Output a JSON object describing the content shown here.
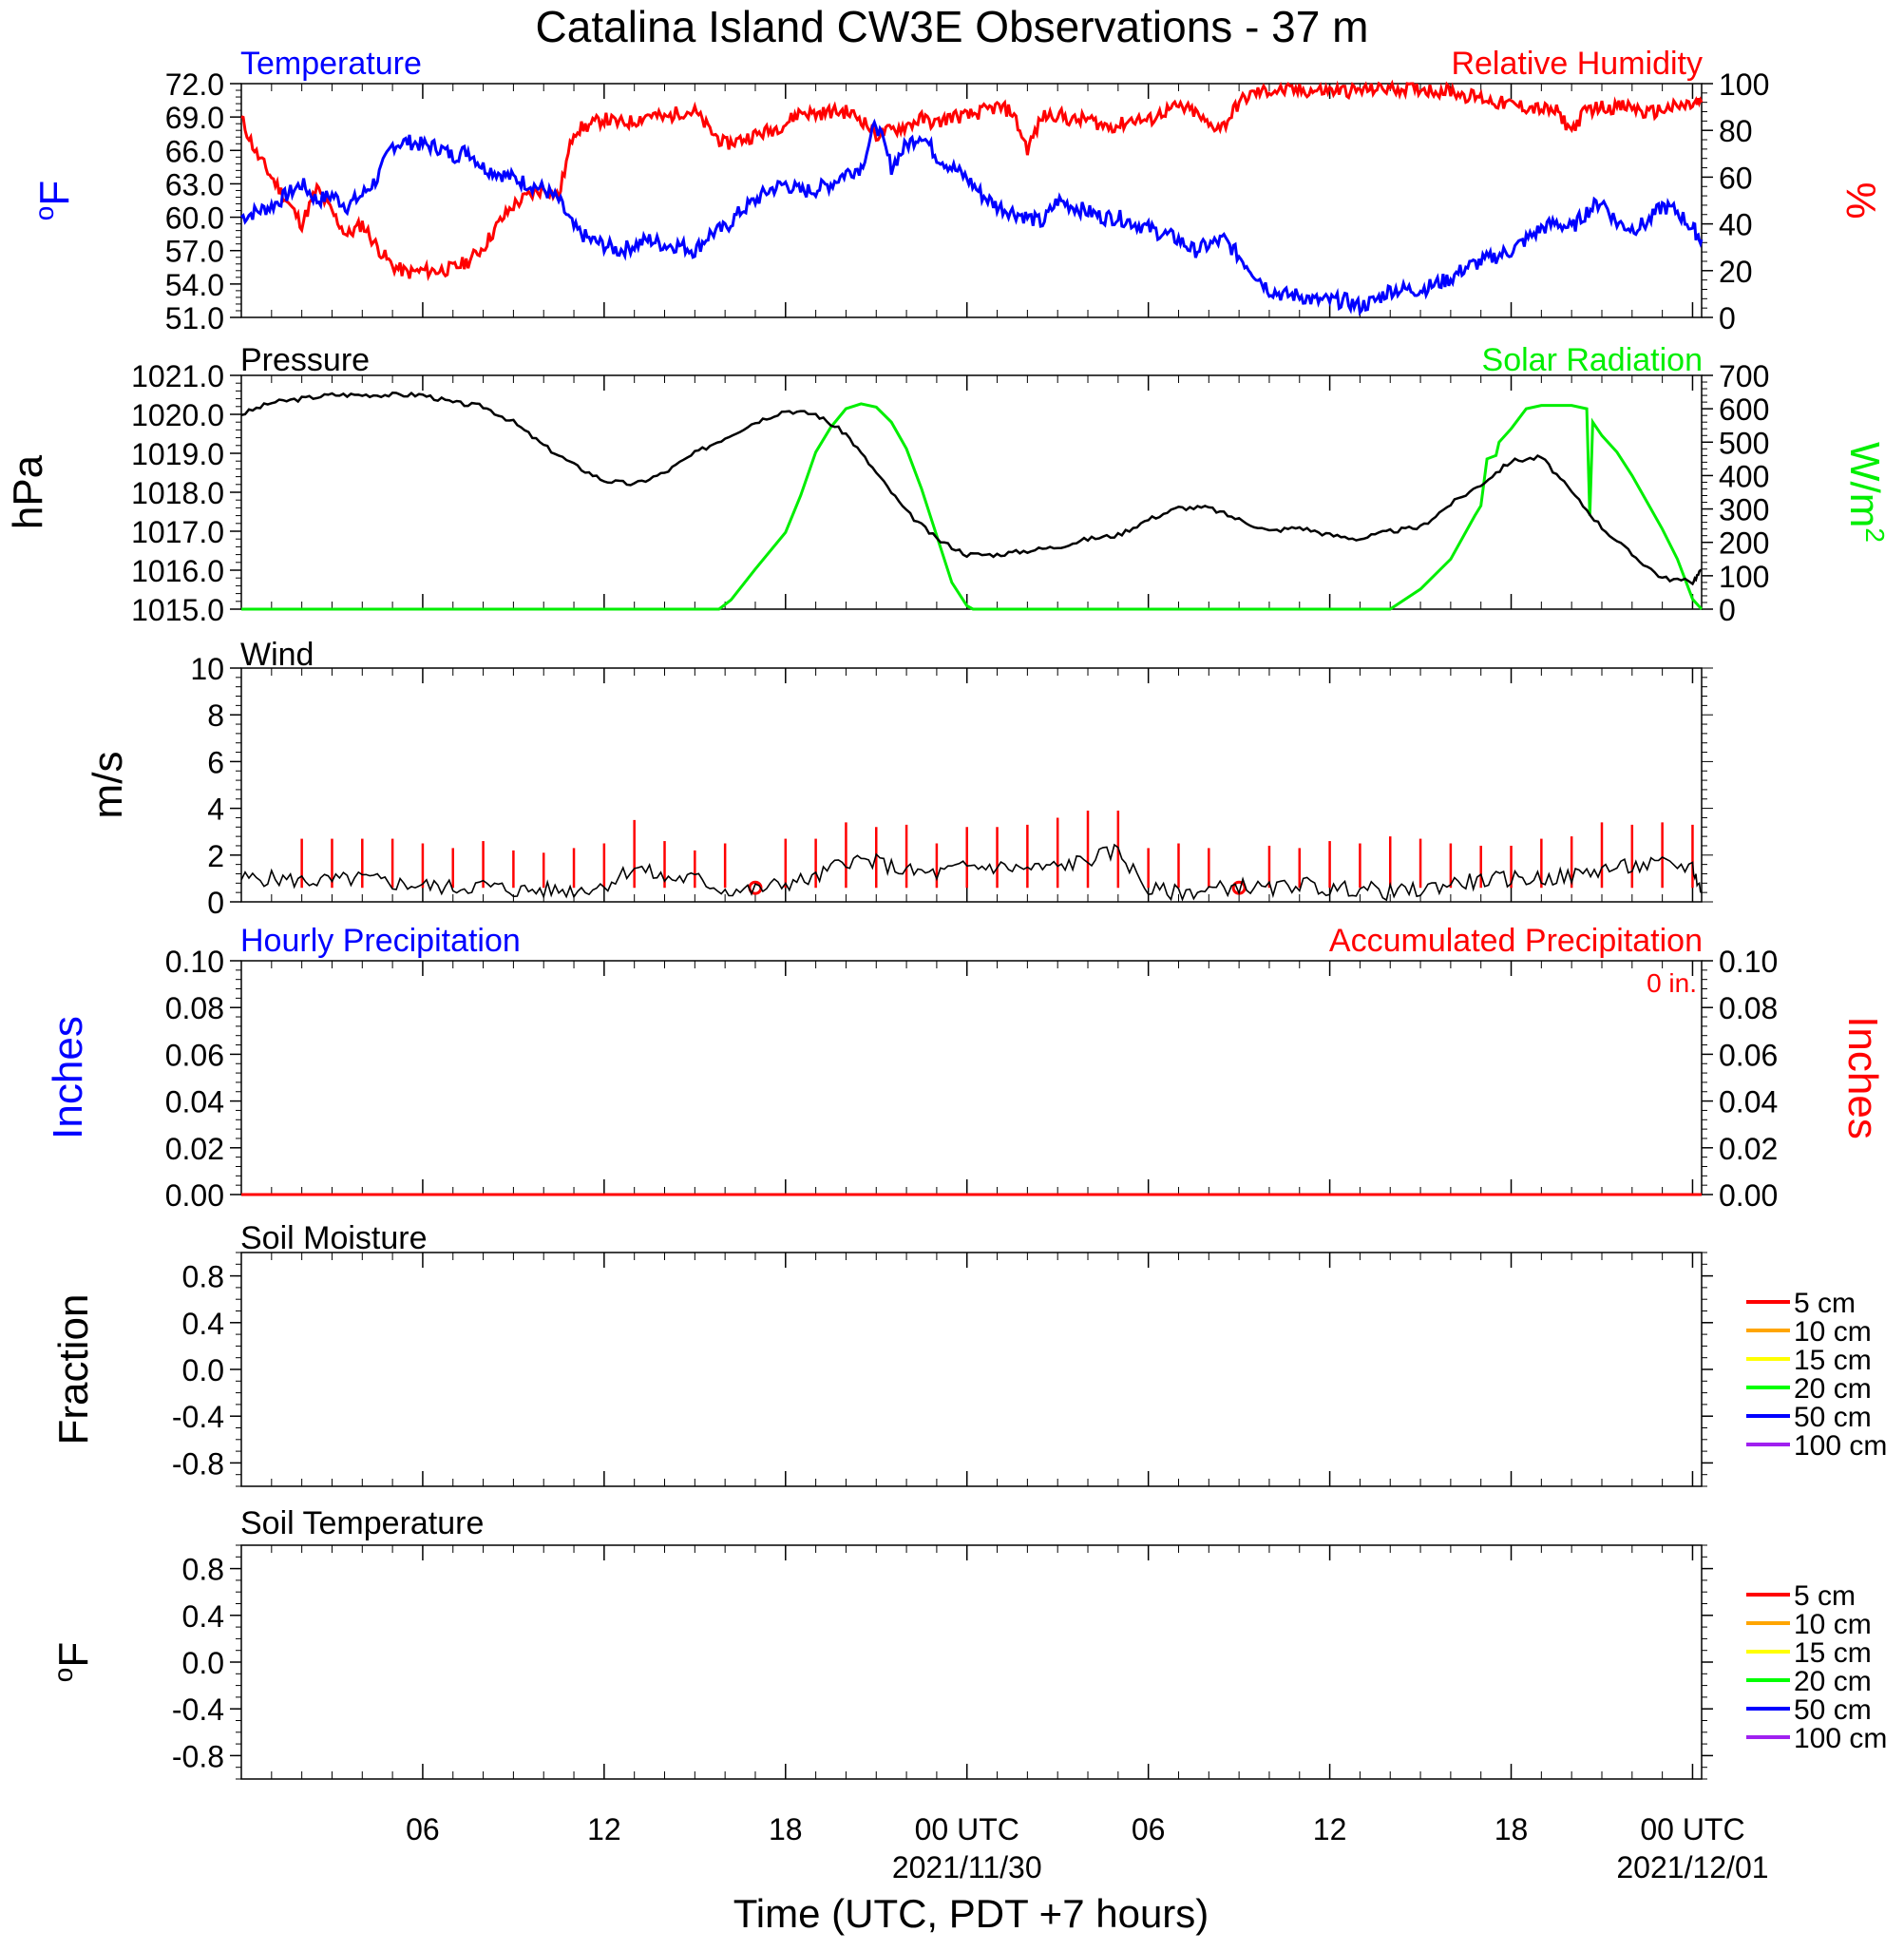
{
  "title": "Catalina Island CW3E Observations - 37 m",
  "x_axis": {
    "label": "Time (UTC, PDT +7 hours)",
    "range_hours": [
      0,
      48.3
    ],
    "ticks": [
      {
        "h": 6,
        "label": "06"
      },
      {
        "h": 12,
        "label": "12"
      },
      {
        "h": 18,
        "label": "18"
      },
      {
        "h": 24,
        "label": "00 UTC",
        "date": "2021/11/30"
      },
      {
        "h": 30,
        "label": "06"
      },
      {
        "h": 36,
        "label": "12"
      },
      {
        "h": 42,
        "label": "18"
      },
      {
        "h": 48,
        "label": "00 UTC",
        "date": "2021/12/01"
      }
    ]
  },
  "colors": {
    "temperature": "#0000ff",
    "humidity": "#ff0000",
    "pressure": "#000000",
    "solar": "#00ee00",
    "wind": "#000000",
    "gust": "#ff0000",
    "hourly_precip": "#0000ff",
    "accum_precip": "#ff0000"
  },
  "panels": {
    "temp_rh": {
      "left_title": "Temperature",
      "right_title": "Relative Humidity",
      "left_unit": "oF",
      "right_unit": "%",
      "left_ticks": [
        "72.0",
        "69.0",
        "66.0",
        "63.0",
        "60.0",
        "57.0",
        "54.0",
        "51.0"
      ],
      "right_ticks": [
        "100",
        "80",
        "60",
        "40",
        "20",
        "0"
      ]
    },
    "pressure_solar": {
      "left_title": "Pressure",
      "right_title": "Solar Radiation",
      "left_unit": "hPa",
      "right_unit": "W/m2",
      "left_ticks": [
        "1021.0",
        "1020.0",
        "1019.0",
        "1018.0",
        "1017.0",
        "1016.0",
        "1015.0"
      ],
      "right_ticks": [
        "700",
        "600",
        "500",
        "400",
        "300",
        "200",
        "100",
        "0"
      ]
    },
    "wind": {
      "left_title": "Wind",
      "left_unit": "m/s",
      "left_ticks": [
        "10",
        "8",
        "6",
        "4",
        "2",
        "0"
      ]
    },
    "precip": {
      "left_title": "Hourly Precipitation",
      "right_title": "Accumulated Precipitation",
      "accum_label": "0 in.",
      "left_unit": "Inches",
      "right_unit": "Inches",
      "left_ticks": [
        "0.10",
        "0.08",
        "0.06",
        "0.04",
        "0.02",
        "0.00"
      ],
      "right_ticks": [
        "0.10",
        "0.08",
        "0.06",
        "0.04",
        "0.02",
        "0.00"
      ]
    },
    "soil_moisture": {
      "left_title": "Soil Moisture",
      "left_unit": "Fraction",
      "left_ticks": [
        "0.8",
        "0.4",
        "0.0",
        "-0.4",
        "-0.8"
      ]
    },
    "soil_temp": {
      "left_title": "Soil Temperature",
      "left_unit": "oF",
      "left_ticks": [
        "0.8",
        "0.4",
        "0.0",
        "-0.4",
        "-0.8"
      ]
    }
  },
  "soil_legend": [
    {
      "label": "5 cm",
      "color": "#ff0000"
    },
    {
      "label": "10 cm",
      "color": "#ffa500"
    },
    {
      "label": "15 cm",
      "color": "#ffff00"
    },
    {
      "label": "20 cm",
      "color": "#00ff00"
    },
    {
      "label": "50 cm",
      "color": "#0000ff"
    },
    {
      "label": "100 cm",
      "color": "#a020f0"
    }
  ],
  "chart_data": [
    {
      "type": "line",
      "title": "Temperature",
      "ylabel": "oF",
      "ylim": [
        51,
        72
      ],
      "x_unit": "hours since 2021/11/29 00 UTC",
      "series": [
        {
          "name": "Temperature",
          "x": [
            0,
            0.5,
            1,
            1.5,
            2,
            2.5,
            3,
            3.5,
            4,
            4.5,
            5,
            5.5,
            6,
            6.5,
            7,
            7.5,
            8,
            8.5,
            9,
            9.5,
            10,
            10.5,
            11,
            11.5,
            12,
            12.5,
            13,
            13.5,
            14,
            14.5,
            15,
            15.5,
            16,
            16.5,
            17,
            17.5,
            18,
            18.5,
            19,
            19.5,
            20,
            20.5,
            21,
            21.5,
            22,
            22.5,
            23,
            23.5,
            24,
            24.5,
            25,
            25.5,
            26,
            26.5,
            27,
            27.5,
            28,
            28.5,
            29,
            29.5,
            30,
            30.5,
            31,
            31.5,
            32,
            32.5,
            33,
            33.5,
            34,
            34.5,
            35,
            35.5,
            36,
            36.5,
            37,
            37.5,
            38,
            38.5,
            39,
            39.5,
            40,
            40.5,
            41,
            41.5,
            42,
            42.5,
            43,
            43.5,
            44,
            44.5,
            45,
            45.5,
            46,
            46.5,
            47,
            47.5,
            48,
            48.3
          ],
          "values": [
            60.0,
            60.5,
            61.0,
            62.0,
            63.0,
            61.5,
            62.0,
            61.0,
            62.0,
            63.5,
            66.5,
            66.8,
            66.5,
            66.3,
            65.5,
            66.0,
            64.5,
            64.0,
            63.5,
            63.0,
            62.5,
            61.5,
            59.0,
            58.0,
            57.5,
            57.0,
            57.5,
            58.0,
            57.5,
            57.5,
            57.0,
            58.5,
            59.0,
            60.5,
            61.5,
            62.5,
            63.0,
            62.3,
            62.5,
            63.0,
            64.0,
            64.5,
            68.5,
            64.5,
            66.5,
            67.5,
            65.5,
            64.5,
            63.5,
            62.0,
            61.0,
            60.5,
            60.0,
            59.5,
            61.5,
            61.0,
            60.5,
            60.0,
            60.0,
            59.5,
            59.0,
            58.5,
            58.0,
            57.0,
            57.5,
            58.0,
            56.5,
            55.0,
            53.5,
            53.0,
            53.0,
            52.5,
            52.5,
            52.5,
            52.0,
            52.5,
            53.5,
            53.5,
            53.5,
            54.0,
            54.5,
            55.5,
            56.0,
            56.5,
            57.0,
            58.0,
            59.0,
            59.5,
            59.0,
            60.5,
            61.5,
            59.5,
            59.0,
            59.5,
            61.0,
            60.5,
            59.0,
            58.0
          ]
        }
      ]
    },
    {
      "type": "line",
      "title": "Relative Humidity",
      "ylabel": "%",
      "ylim": [
        0,
        100
      ],
      "x_unit": "hours since 2021/11/29 00 UTC",
      "series": [
        {
          "name": "Relative Humidity",
          "x": [
            0,
            0.5,
            1,
            1.5,
            2,
            2.5,
            3,
            3.5,
            4,
            4.5,
            5,
            5.5,
            6,
            6.5,
            7,
            7.5,
            8,
            8.5,
            9,
            9.5,
            10,
            10.5,
            11,
            11.5,
            12,
            12.5,
            13,
            13.5,
            14,
            14.5,
            15,
            15.5,
            16,
            16.5,
            17,
            17.5,
            18,
            18.5,
            19,
            19.5,
            20,
            20.5,
            21,
            21.5,
            22,
            22.5,
            23,
            23.5,
            24,
            24.5,
            25,
            25.5,
            26,
            26.5,
            27,
            27.5,
            28,
            28.5,
            29,
            29.5,
            30,
            30.5,
            31,
            31.5,
            32,
            32.5,
            33,
            33.5,
            34,
            34.5,
            35,
            35.5,
            36,
            36.5,
            37,
            37.5,
            38,
            38.5,
            39,
            39.5,
            40,
            40.5,
            41,
            41.5,
            42,
            42.5,
            43,
            43.5,
            44,
            44.5,
            45,
            45.5,
            46,
            46.5,
            47,
            47.5,
            48,
            48.3
          ],
          "values": [
            85,
            70,
            60,
            50,
            40,
            55,
            45,
            35,
            40,
            30,
            22,
            19,
            20,
            20,
            21,
            24,
            30,
            40,
            48,
            52,
            55,
            52,
            80,
            82,
            85,
            83,
            84,
            87,
            85,
            88,
            88,
            80,
            74,
            76,
            78,
            80,
            83,
            88,
            87,
            88,
            88,
            85,
            78,
            80,
            82,
            85,
            83,
            86,
            86,
            88,
            90,
            88,
            72,
            86,
            87,
            84,
            85,
            82,
            82,
            85,
            84,
            88,
            90,
            88,
            82,
            82,
            92,
            96,
            97,
            97,
            97,
            97,
            97,
            97,
            97,
            98,
            98,
            98,
            98,
            97,
            97,
            95,
            94,
            92,
            91,
            90,
            89,
            88,
            80,
            89,
            90,
            90,
            90,
            87,
            89,
            90,
            91,
            92
          ]
        }
      ]
    },
    {
      "type": "line",
      "title": "Pressure",
      "ylabel": "hPa",
      "ylim": [
        1015,
        1021
      ],
      "x_unit": "hours since 2021/11/29 00 UTC",
      "series": [
        {
          "name": "Pressure",
          "x": [
            0,
            1,
            2,
            3,
            4,
            5,
            6,
            7,
            8,
            9,
            10,
            11,
            12,
            13,
            14,
            15,
            16,
            17,
            18,
            19,
            20,
            21,
            22,
            23,
            24,
            25,
            26,
            27,
            28,
            29,
            30,
            31,
            32,
            33,
            34,
            35,
            36,
            37,
            38,
            39,
            40,
            41,
            42,
            43,
            44,
            45,
            46,
            47,
            48,
            48.3
          ],
          "values": [
            1020.0,
            1020.3,
            1020.4,
            1020.5,
            1020.5,
            1020.5,
            1020.5,
            1020.3,
            1020.2,
            1019.8,
            1019.2,
            1018.7,
            1018.3,
            1018.2,
            1018.5,
            1019.0,
            1019.4,
            1019.8,
            1020.1,
            1020.0,
            1019.5,
            1018.5,
            1017.5,
            1016.8,
            1016.4,
            1016.4,
            1016.5,
            1016.6,
            1016.8,
            1016.9,
            1017.3,
            1017.6,
            1017.6,
            1017.3,
            1017.0,
            1017.1,
            1016.9,
            1016.8,
            1017.0,
            1017.1,
            1017.7,
            1018.2,
            1018.8,
            1018.9,
            1018.0,
            1017.1,
            1016.4,
            1015.8,
            1015.7,
            1016.0
          ]
        }
      ]
    },
    {
      "type": "line",
      "title": "Solar Radiation",
      "ylabel": "W/m2",
      "ylim": [
        0,
        700
      ],
      "x_unit": "hours since 2021/11/29 00 UTC",
      "series": [
        {
          "name": "Solar Radiation",
          "x": [
            0,
            15.8,
            16.2,
            17,
            18,
            18.5,
            19,
            19.5,
            20,
            20.5,
            21,
            21.5,
            22,
            22.5,
            23,
            23.5,
            24,
            24.2,
            38,
            39,
            40,
            40.8,
            41,
            41.2,
            41.5,
            41.6,
            42,
            42.5,
            43,
            43.5,
            44,
            44.5,
            44.6,
            44.7,
            45,
            45.5,
            46,
            46.5,
            47,
            47.5,
            48,
            48.3
          ],
          "values": [
            0,
            0,
            28,
            120,
            230,
            340,
            470,
            545,
            600,
            615,
            605,
            560,
            480,
            360,
            220,
            80,
            10,
            0,
            0,
            60,
            150,
            280,
            310,
            450,
            460,
            500,
            540,
            600,
            610,
            610,
            610,
            600,
            280,
            560,
            520,
            470,
            400,
            320,
            240,
            150,
            30,
            0
          ]
        }
      ]
    },
    {
      "type": "line",
      "title": "Wind",
      "ylabel": "m/s",
      "ylim": [
        0,
        10
      ],
      "x_unit": "hours since 2021/11/29 00 UTC",
      "series": [
        {
          "name": "Wind speed",
          "x": [
            0,
            1,
            2,
            3,
            4,
            5,
            6,
            7,
            8,
            9,
            10,
            11,
            12,
            13,
            14,
            15,
            16,
            17,
            18,
            19,
            20,
            21,
            22,
            23,
            24,
            25,
            26,
            27,
            28,
            29,
            30,
            31,
            32,
            33,
            34,
            35,
            36,
            37,
            38,
            39,
            40,
            41,
            42,
            43,
            44,
            45,
            46,
            47,
            48,
            48.3
          ],
          "values": [
            1.0,
            1.0,
            0.9,
            0.9,
            1.0,
            0.8,
            0.7,
            0.6,
            0.7,
            0.5,
            0.5,
            0.5,
            0.7,
            1.5,
            1.0,
            1.0,
            0.5,
            0.5,
            0.8,
            1.0,
            1.8,
            1.7,
            1.3,
            1.2,
            1.5,
            1.5,
            1.4,
            1.5,
            1.8,
            2.2,
            0.5,
            0.4,
            0.5,
            0.7,
            0.5,
            0.8,
            0.5,
            0.6,
            0.4,
            0.5,
            0.8,
            0.9,
            1.0,
            1.0,
            1.1,
            1.4,
            1.5,
            1.6,
            1.5,
            0.4
          ]
        },
        {
          "name": "Gust",
          "x": [
            2,
            3,
            4,
            5,
            6,
            7,
            8,
            9,
            10,
            11,
            12,
            13,
            14,
            15,
            16,
            17,
            18,
            19,
            20,
            21,
            22,
            23,
            24,
            25,
            26,
            27,
            28,
            29,
            30,
            31,
            32,
            33,
            34,
            35,
            36,
            37,
            38,
            39,
            40,
            41,
            42,
            43,
            44,
            45,
            46,
            47,
            48
          ],
          "values": [
            2.7,
            2.7,
            2.7,
            2.7,
            2.5,
            2.3,
            2.6,
            2.2,
            2.1,
            2.3,
            2.5,
            3.5,
            2.6,
            2.2,
            2.5,
            1.5,
            2.7,
            2.7,
            3.4,
            3.2,
            3.3,
            2.5,
            3.2,
            3.2,
            3.3,
            3.6,
            3.9,
            3.9,
            2.3,
            2.5,
            2.3,
            1.7,
            2.4,
            2.3,
            2.6,
            2.5,
            2.8,
            2.7,
            2.5,
            2.4,
            2.4,
            2.7,
            2.8,
            3.4,
            3.3,
            3.4,
            3.3
          ]
        }
      ]
    },
    {
      "type": "line",
      "title": "Hourly Precipitation",
      "ylabel": "Inches",
      "ylim": [
        0,
        0.1
      ],
      "x_unit": "hours since 2021/11/29 00 UTC",
      "series": [
        {
          "name": "Hourly Precipitation",
          "x": [
            0,
            48.3
          ],
          "values": [
            0,
            0
          ]
        },
        {
          "name": "Accumulated Precipitation",
          "x": [
            0,
            48.3
          ],
          "values": [
            0,
            0
          ]
        }
      ]
    }
  ]
}
